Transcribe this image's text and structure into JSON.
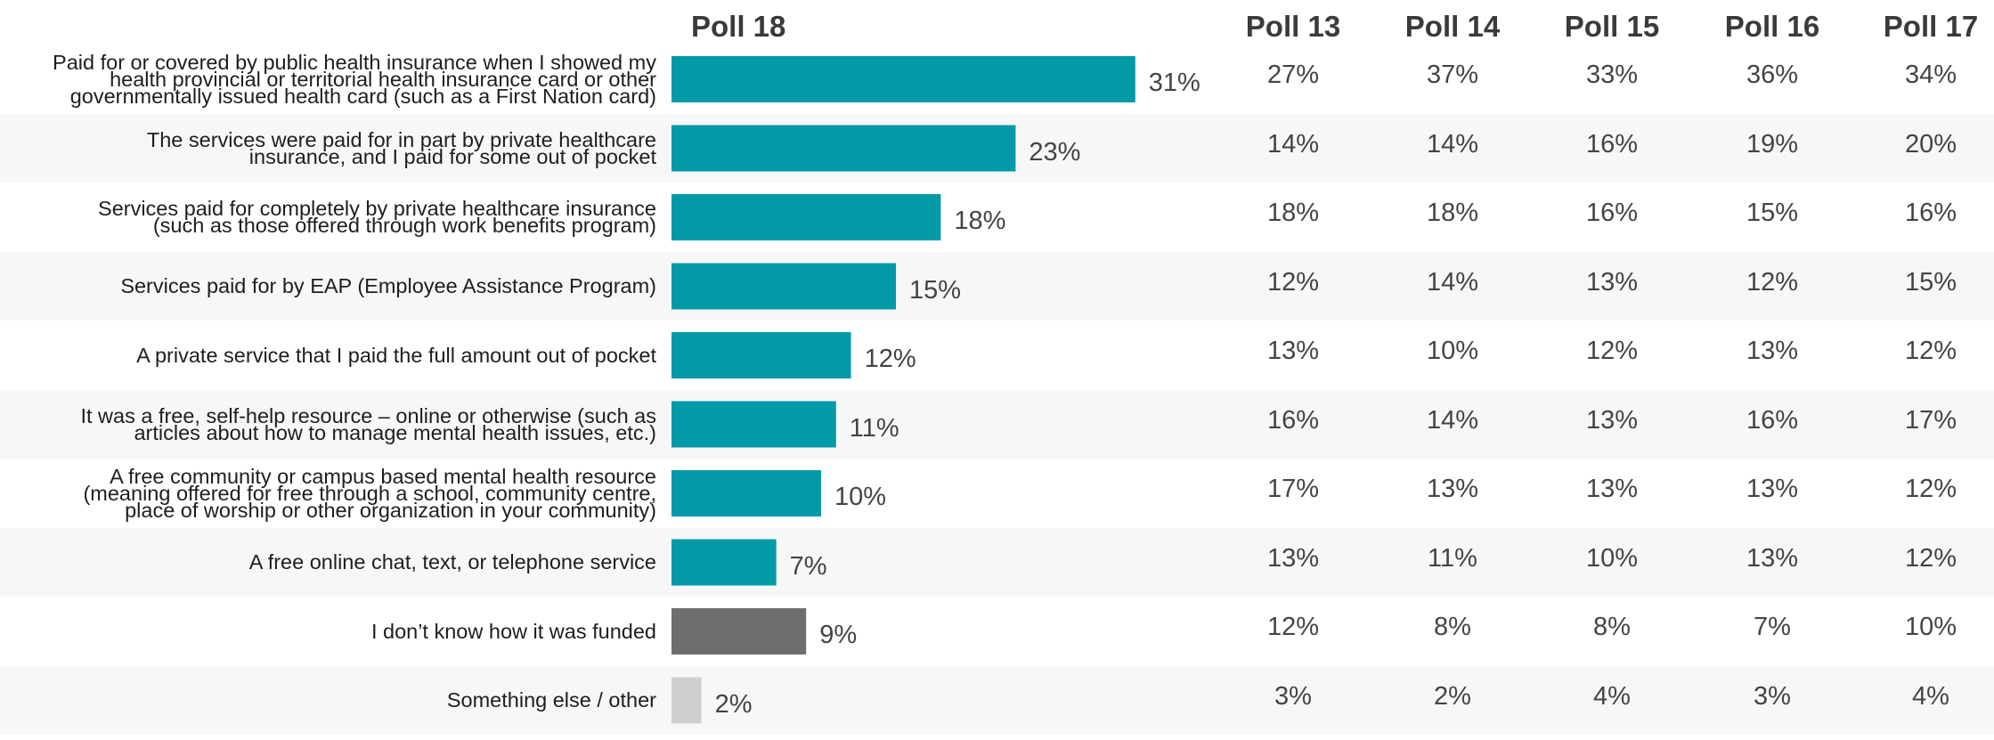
{
  "chart_data": {
    "type": "bar",
    "orientation": "horizontal",
    "title": "",
    "xlabel": "",
    "ylabel": "",
    "xlim": [
      0,
      100
    ],
    "bar_series_name": "Poll 18",
    "categories": [
      [
        "Paid for or covered by public health insurance when I showed my",
        "health provincial or territorial health insurance card or other",
        "governmentally issued health card (such as a First Nation card)"
      ],
      [
        "The services were paid for in part by private healthcare",
        "insurance, and I paid for some out of pocket"
      ],
      [
        "Services paid for completely by private healthcare insurance",
        "(such as those offered through work benefits program)"
      ],
      [
        "Services paid for by EAP (Employee Assistance Program)"
      ],
      [
        "A private service that I paid the full amount out of pocket"
      ],
      [
        "It was a free, self-help resource – online or otherwise (such as",
        "articles about how to manage mental health issues, etc.)"
      ],
      [
        "A free community or campus based mental health resource",
        "(meaning offered for free through a school, community centre,",
        "place of worship or other organization in your community)"
      ],
      [
        "A free online chat, text, or telephone service"
      ],
      [
        "I don’t know how it was funded"
      ],
      [
        "Something else / other"
      ]
    ],
    "values": [
      31,
      23,
      18,
      15,
      12,
      11,
      10,
      7,
      9,
      2
    ],
    "value_labels": [
      "31%",
      "23%",
      "18%",
      "15%",
      "12%",
      "11%",
      "10%",
      "7%",
      "9%",
      "2%"
    ],
    "bar_colors": [
      "#039aa8",
      "#039aa8",
      "#039aa8",
      "#039aa8",
      "#039aa8",
      "#039aa8",
      "#039aa8",
      "#039aa8",
      "#6d6e6e",
      "#cfcfcf"
    ],
    "table_columns": [
      "Poll 13",
      "Poll 14",
      "Poll 15",
      "Poll 16",
      "Poll 17"
    ],
    "table_rows": [
      [
        "27%",
        "37%",
        "33%",
        "36%",
        "34%"
      ],
      [
        "14%",
        "14%",
        "16%",
        "19%",
        "20%"
      ],
      [
        "18%",
        "18%",
        "16%",
        "15%",
        "16%"
      ],
      [
        "12%",
        "14%",
        "13%",
        "12%",
        "15%"
      ],
      [
        "13%",
        "10%",
        "12%",
        "13%",
        "12%"
      ],
      [
        "16%",
        "14%",
        "13%",
        "16%",
        "17%"
      ],
      [
        "17%",
        "13%",
        "13%",
        "13%",
        "12%"
      ],
      [
        "13%",
        "11%",
        "10%",
        "13%",
        "12%"
      ],
      [
        "12%",
        "8%",
        "8%",
        "7%",
        "10%"
      ],
      [
        "3%",
        "2%",
        "4%",
        "3%",
        "4%"
      ]
    ],
    "grid": false,
    "legend": "none"
  }
}
